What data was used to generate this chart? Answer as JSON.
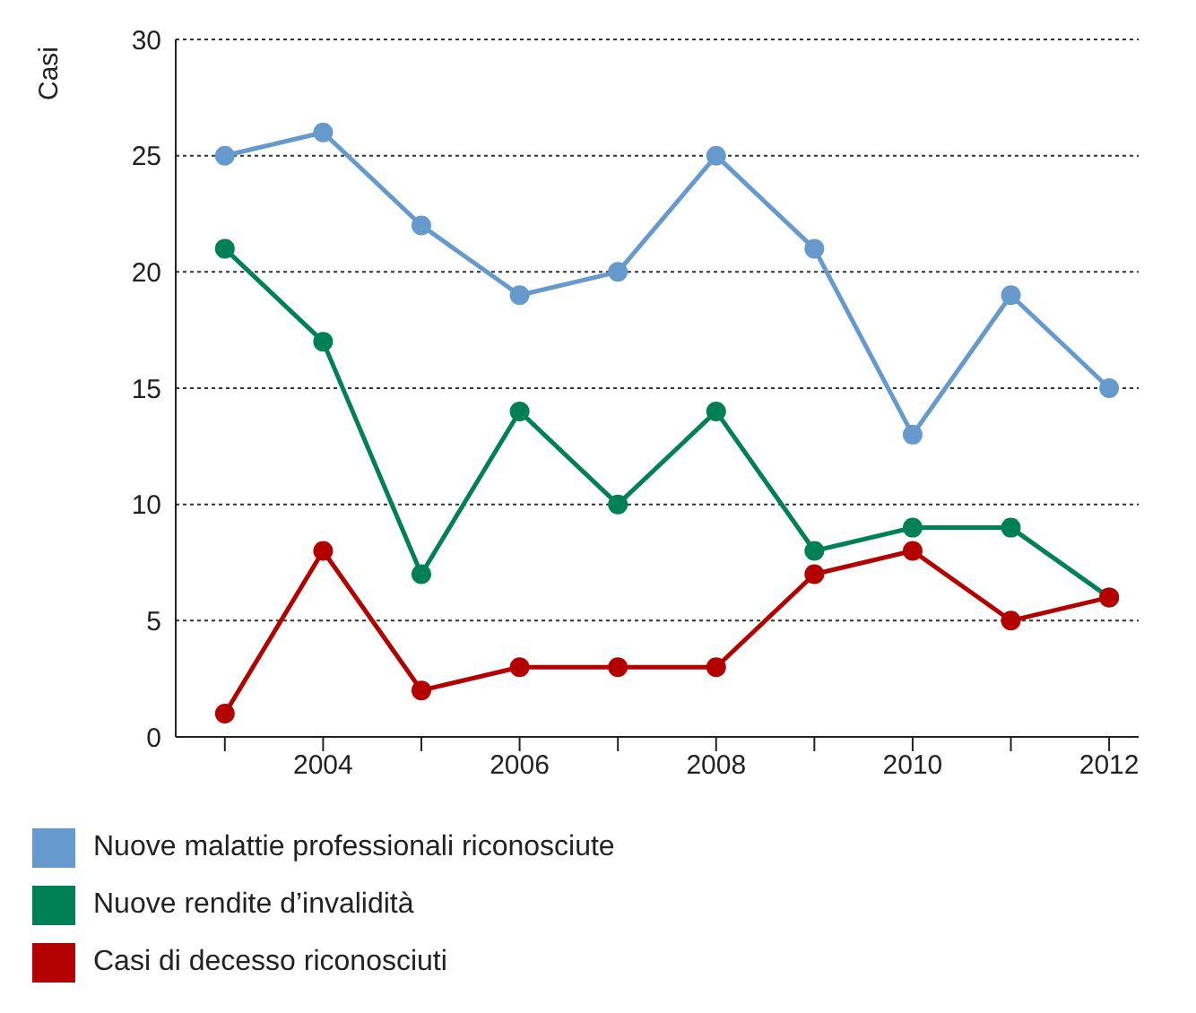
{
  "chart_data": {
    "type": "line",
    "ylabel": "Casi",
    "x": [
      2003,
      2004,
      2005,
      2006,
      2007,
      2008,
      2009,
      2010,
      2011,
      2012
    ],
    "series": [
      {
        "name": "Nuove malattie professionali riconosciute",
        "color": "#6699cc",
        "values": [
          25,
          26,
          22,
          19,
          20,
          25,
          21,
          13,
          19,
          15
        ]
      },
      {
        "name": "Nuove rendite d’invalidità",
        "color": "#008055",
        "values": [
          21,
          17,
          7,
          14,
          10,
          14,
          8,
          9,
          9,
          6
        ]
      },
      {
        "name": "Casi di decesso riconosciuti",
        "color": "#b30000",
        "values": [
          1,
          8,
          2,
          3,
          3,
          3,
          7,
          8,
          5,
          6
        ]
      }
    ],
    "xlim": [
      2002.5,
      2012.3
    ],
    "xticks": [
      {
        "value": 2003,
        "label": null
      },
      2004,
      {
        "value": 2005,
        "label": null
      },
      2006,
      {
        "value": 2007,
        "label": null
      },
      2008,
      {
        "value": 2009,
        "label": null
      },
      2010,
      {
        "value": 2011,
        "label": null
      },
      2012
    ],
    "ylim": [
      0,
      30
    ],
    "yticks": [
      0,
      5,
      10,
      15,
      20,
      25,
      30
    ],
    "grid": "y",
    "legend": "bottom",
    "marker": "circle",
    "line_style": "solid"
  }
}
